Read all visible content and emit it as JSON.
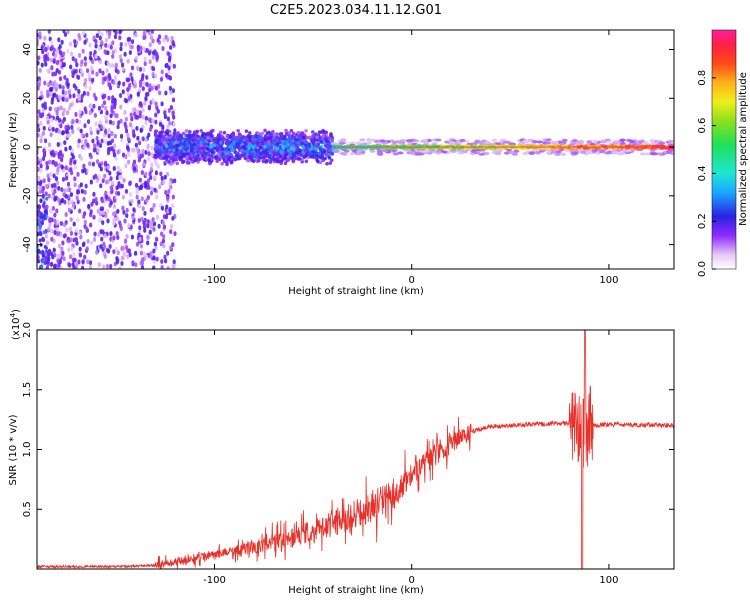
{
  "figure": {
    "title": "C2E5.2023.034.11.12.G01"
  },
  "chart_data": [
    {
      "type": "heatmap",
      "xlabel": "Height of straight line (km)",
      "ylabel": "Frequency (Hz)",
      "xlim": [
        -190,
        133
      ],
      "ylim": [
        -50,
        48
      ],
      "xticks": [
        -100,
        0,
        100
      ],
      "yticks": [
        -40,
        -20,
        0,
        20,
        40
      ],
      "colorbar": {
        "label": "Normalized spectral amplitude",
        "range": [
          0,
          1
        ],
        "ticks": [
          0.0,
          0.2,
          0.4,
          0.6,
          0.8
        ]
      },
      "features": {
        "noise_region_x": [
          -190,
          -130
        ],
        "broadband_band_x": [
          -130,
          -40
        ],
        "broadband_halfwidth_hz": 6,
        "narrow_line_x": [
          -40,
          133
        ],
        "narrow_line_freq_hz": 0,
        "peak_amplitude_x": [
          0,
          133
        ]
      }
    },
    {
      "type": "line",
      "xlabel": "Height of straight line (km)",
      "ylabel": "SNR (10 * v/v)",
      "y_multiplier": "(x10",
      "y_multiplier_exp": "4",
      "y_multiplier_close": ")",
      "xlim": [
        -190,
        133
      ],
      "ylim": [
        0,
        2.0
      ],
      "xticks": [
        -100,
        0,
        100
      ],
      "yticks": [
        0.5,
        1.0,
        1.5,
        2.0
      ],
      "line_color": "#e8302a",
      "series": [
        {
          "x": [
            -190,
            -150,
            -130,
            -120,
            -100,
            -80,
            -60,
            -40,
            -20,
            -10,
            0,
            10,
            20,
            30,
            40,
            60,
            80,
            86,
            88,
            90,
            100,
            133
          ],
          "y": [
            0.02,
            0.02,
            0.03,
            0.06,
            0.12,
            0.18,
            0.26,
            0.38,
            0.52,
            0.62,
            0.78,
            0.92,
            1.05,
            1.15,
            1.19,
            1.21,
            1.22,
            1.2,
            1.2,
            1.2,
            1.21,
            1.2
          ]
        }
      ]
    }
  ]
}
